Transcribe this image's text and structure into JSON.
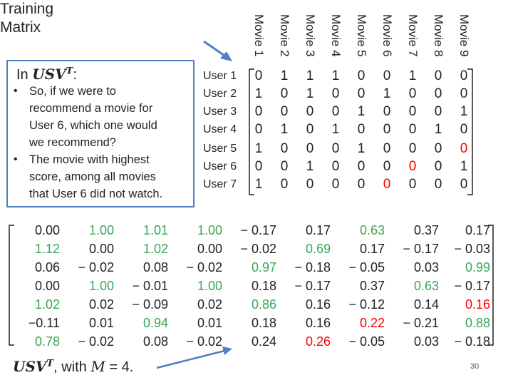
{
  "title_line1": "Training",
  "title_line2": "Matrix",
  "movies": [
    "Movie 1",
    "Movie 2",
    "Movie 3",
    "Movie 4",
    "Movie 5",
    "Movie 6",
    "Movie 7",
    "Movie 8",
    "Movie 9"
  ],
  "users": [
    "User 1",
    "User 2",
    "User 3",
    "User 4",
    "User 5",
    "User 6",
    "User 7"
  ],
  "training_matrix": [
    [
      "0",
      "1",
      "1",
      "1",
      "0",
      "0",
      "1",
      "0",
      "0"
    ],
    [
      "1",
      "0",
      "1",
      "0",
      "0",
      "1",
      "0",
      "0",
      "0"
    ],
    [
      "0",
      "0",
      "0",
      "0",
      "1",
      "0",
      "0",
      "0",
      "1"
    ],
    [
      "0",
      "1",
      "0",
      "1",
      "0",
      "0",
      "0",
      "1",
      "0"
    ],
    [
      "1",
      "0",
      "0",
      "0",
      "1",
      "0",
      "0",
      "0",
      "0"
    ],
    [
      "0",
      "0",
      "1",
      "0",
      "0",
      "0",
      "0",
      "0",
      "1"
    ],
    [
      "1",
      "0",
      "0",
      "0",
      "0",
      "0",
      "0",
      "0",
      "0"
    ]
  ],
  "training_highlight": {
    "4-8": "#ff0000",
    "5-6": "#ff0000",
    "6-5": "#ff0000"
  },
  "callout": {
    "prefix": "In ",
    "expr": "USV",
    "sup": "T",
    "suffix": ":",
    "bullet_char": "•",
    "bullets": [
      [
        "So, if we were to",
        "recommend a movie for",
        "User 6, which one would",
        "we recommend?"
      ],
      [
        "The movie with highest",
        "score, among all movies",
        "that User 6 did not watch."
      ]
    ]
  },
  "result_matrix": [
    [
      "0.00",
      "1.00",
      "1.01",
      "1.00",
      "− 0.17",
      "0.17",
      "0.63",
      "0.37",
      "0.17"
    ],
    [
      "1.12",
      "0.00",
      "1.02",
      "0.00",
      "− 0.02",
      "0.69",
      "0.17",
      "− 0.17",
      "− 0.03"
    ],
    [
      "0.06",
      "− 0.02",
      "0.08",
      "− 0.02",
      "0.97",
      "− 0.18",
      "− 0.05",
      "0.03",
      "0.99"
    ],
    [
      "0.00",
      "1.00",
      "− 0.01",
      "1.00",
      "0.18",
      "− 0.17",
      "0.37",
      "0.63",
      "− 0.17"
    ],
    [
      "1.02",
      "0.02",
      "− 0.09",
      "0.02",
      "0.86",
      "0.16",
      "− 0.12",
      "0.14",
      "0.16"
    ],
    [
      "−0.11",
      "0.01",
      "0.94",
      "0.01",
      "0.18",
      "0.16",
      "0.22",
      "− 0.21",
      "0.88"
    ],
    [
      "0.78",
      "− 0.02",
      "0.08",
      "− 0.02",
      "0.24",
      "0.26",
      "− 0.05",
      "0.03",
      "− 0.18"
    ]
  ],
  "result_colors": {
    "0-1": "#3aa655",
    "0-2": "#3aa655",
    "0-3": "#3aa655",
    "0-6": "#3aa655",
    "1-0": "#3aa655",
    "1-2": "#3aa655",
    "1-5": "#3aa655",
    "2-4": "#3aa655",
    "2-8": "#3aa655",
    "3-1": "#3aa655",
    "3-3": "#3aa655",
    "3-7": "#3aa655",
    "4-0": "#3aa655",
    "4-4": "#3aa655",
    "4-8": "#ff0000",
    "5-2": "#3aa655",
    "5-6": "#ff0000",
    "5-8": "#3aa655",
    "6-0": "#3aa655",
    "6-5": "#ff0000"
  },
  "bottom_label": {
    "expr": "USV",
    "sup": "T",
    "text": ", with ",
    "var": "M",
    "rest": " = 4."
  },
  "page_number": "30",
  "colors": {
    "callout_border": "#4f7ec4",
    "arrow": "#4f7ec4",
    "green": "#3aa655",
    "red": "#ff0000"
  }
}
